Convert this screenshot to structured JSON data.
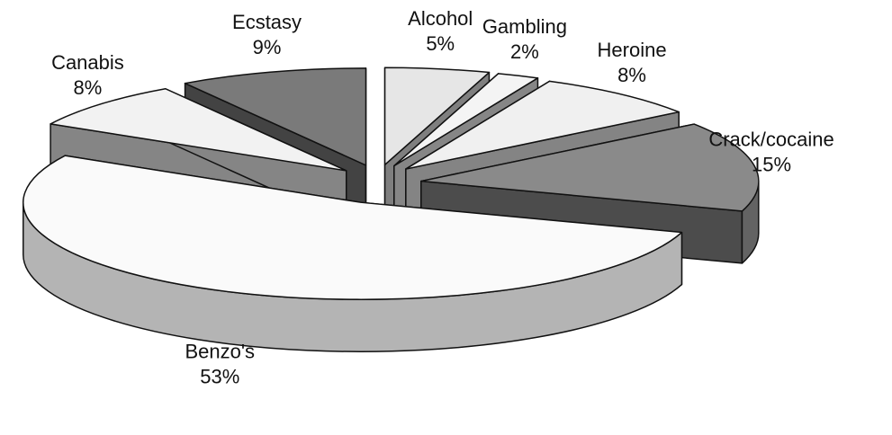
{
  "chart_data": {
    "type": "pie",
    "style": "3d-exploded",
    "categories": [
      "Alcohol",
      "Gambling",
      "Heroine",
      "Crack/cocaine",
      "Benzo's",
      "Canabis",
      "Ecstasy"
    ],
    "values": [
      5,
      2,
      8,
      15,
      53,
      8,
      9
    ],
    "value_labels": [
      "5%",
      "2%",
      "8%",
      "15%",
      "53%",
      "8%",
      "9%"
    ],
    "colors": [
      "#e6e6e6",
      "#f4f4f4",
      "#f0f0f0",
      "#8a8a8a",
      "#fafafa",
      "#f2f2f2",
      "#7a7a7a"
    ]
  }
}
